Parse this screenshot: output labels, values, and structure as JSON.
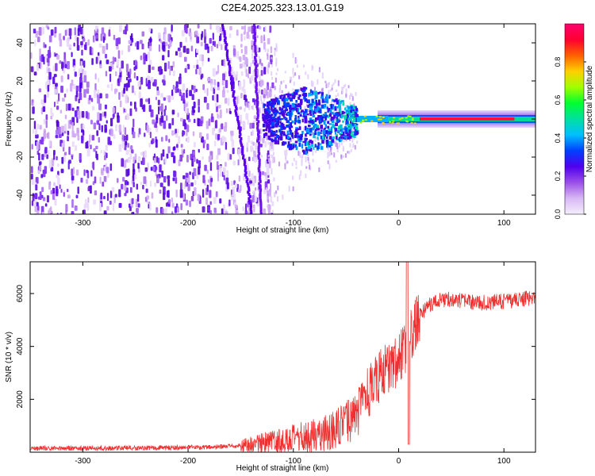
{
  "title": "C2E4.2025.323.13.01.G19",
  "chart_data": [
    {
      "type": "heatmap",
      "title": "C2E4.2025.323.13.01.G19",
      "xlabel": "Height of straight line (km)",
      "ylabel": "Frequency (Hz)",
      "xlim": [
        -350,
        130
      ],
      "ylim": [
        -50,
        50
      ],
      "xticks": [
        -300,
        -200,
        -100,
        0,
        100
      ],
      "xtick_labels": [
        "-300",
        "-200",
        "-100",
        "0",
        "100"
      ],
      "yticks": [
        -40,
        -20,
        0,
        20,
        40
      ],
      "ytick_labels": [
        "-40",
        "-20",
        "0",
        "20",
        "40"
      ],
      "colorbar": {
        "label": "Normalized spectral amplitude",
        "range": [
          0,
          1
        ],
        "ticks": [
          0.0,
          0.2,
          0.4,
          0.6,
          0.8
        ],
        "tick_labels": [
          "0.0",
          "0.2",
          "0.4",
          "0.6",
          "0.8"
        ],
        "colors": [
          "#f4eefc",
          "#d8b8f4",
          "#9b4fe8",
          "#5000ee",
          "#0040ff",
          "#00bfff",
          "#00e0a0",
          "#00ff30",
          "#a0ff00",
          "#ffd000",
          "#ff6000",
          "#ff0030",
          "#ff0070"
        ]
      },
      "features": [
        {
          "name": "noise-region",
          "x_range": [
            -350,
            -130
          ],
          "description": "scattered low-amplitude noise"
        },
        {
          "name": "signal-band",
          "x_range": [
            -60,
            130
          ],
          "center_frequency": 0,
          "peak_amplitude": 1.0
        }
      ]
    },
    {
      "type": "line",
      "xlabel": "Height of straight line (km)",
      "ylabel": "SNR (10 * v/v)",
      "xlim": [
        -350,
        130
      ],
      "ylim": [
        0,
        7200
      ],
      "xticks": [
        -300,
        -200,
        -100,
        0,
        100
      ],
      "xtick_labels": [
        "-300",
        "-200",
        "-100",
        "0",
        "100"
      ],
      "yticks": [
        2000,
        4000,
        6000
      ],
      "ytick_labels": [
        "2000",
        "4000",
        "6000"
      ],
      "color": "#f03030",
      "series": [
        {
          "name": "SNR",
          "x": [
            -350,
            -300,
            -250,
            -200,
            -170,
            -150,
            -120,
            -100,
            -80,
            -60,
            -50,
            -40,
            -30,
            -20,
            -10,
            0,
            5,
            8,
            10,
            15,
            20,
            30,
            40,
            50,
            60,
            80,
            100,
            130
          ],
          "y": [
            150,
            150,
            160,
            180,
            200,
            250,
            400,
            500,
            650,
            850,
            1100,
            1400,
            2200,
            2800,
            3200,
            3500,
            3800,
            4000,
            4300,
            4700,
            5200,
            5600,
            5750,
            5800,
            5700,
            5650,
            5700,
            5850
          ]
        }
      ]
    }
  ]
}
